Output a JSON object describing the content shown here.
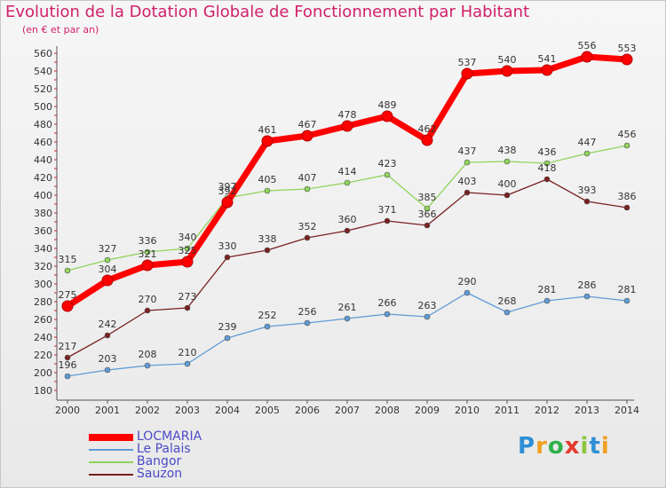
{
  "header": {
    "title": "Evolution de la Dotation Globale de Fonctionnement par Habitant",
    "subtitle": "(en € et par an)"
  },
  "logo": {
    "text": "Proxiti",
    "colors": [
      "#2f8fd6",
      "#f0a020",
      "#2db24a",
      "#e53a2e",
      "#8cc63f",
      "#2f8fd6",
      "#f0a020"
    ]
  },
  "chart_data": {
    "type": "line",
    "x": [
      2000,
      2001,
      2002,
      2003,
      2004,
      2005,
      2006,
      2007,
      2008,
      2009,
      2010,
      2011,
      2012,
      2013,
      2014
    ],
    "ylim": [
      180,
      560
    ],
    "yticks": [
      180,
      200,
      220,
      240,
      260,
      280,
      300,
      320,
      340,
      360,
      380,
      400,
      420,
      440,
      460,
      480,
      500,
      520,
      540,
      560
    ],
    "grid": false,
    "legend_position": "bottom-left",
    "series": [
      {
        "name": "LOCMARIA",
        "color": "#ff0000",
        "values": [
          275,
          304,
          321,
          325,
          392,
          461,
          467,
          478,
          489,
          462,
          537,
          540,
          541,
          556,
          553
        ],
        "labels": [
          "275",
          "304",
          "321",
          "325",
          "392",
          "461",
          "467",
          "478",
          "489",
          "462",
          "537",
          "540",
          "541",
          "556",
          "553"
        ]
      },
      {
        "name": "Le Palais",
        "color": "#5f9bd6",
        "values": [
          196,
          203,
          208,
          210,
          239,
          252,
          256,
          261,
          266,
          263,
          290,
          268,
          281,
          286,
          281
        ],
        "labels": [
          "196",
          "203",
          "208",
          "210",
          "239",
          "252",
          "256",
          "261",
          "266",
          "263",
          "290",
          "268",
          "281",
          "286",
          "281"
        ]
      },
      {
        "name": "Bangor",
        "color": "#8fd45a",
        "values": [
          315,
          327,
          336,
          340,
          397,
          405,
          407,
          414,
          423,
          385,
          437,
          438,
          436,
          447,
          456
        ],
        "labels": [
          "315",
          "327",
          "336",
          "340",
          "397",
          "405",
          "407",
          "414",
          "423",
          "385",
          "437",
          "438",
          "436",
          "447",
          "456"
        ]
      },
      {
        "name": "Sauzon",
        "color": "#7a2020",
        "values": [
          217,
          242,
          270,
          273,
          330,
          338,
          352,
          360,
          371,
          366,
          403,
          400,
          418,
          393,
          386
        ],
        "labels": [
          "217",
          "242",
          "270",
          "273",
          "330",
          "338",
          "352",
          "360",
          "371",
          "366",
          "403",
          "400",
          "418",
          "393",
          "386"
        ]
      }
    ]
  }
}
